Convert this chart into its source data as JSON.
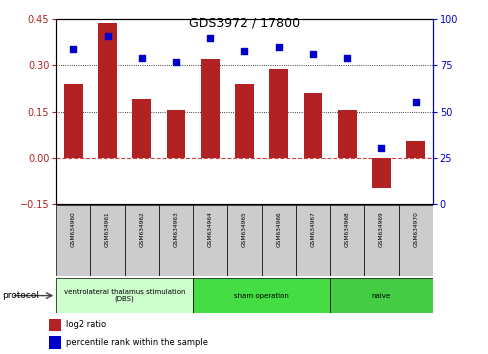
{
  "title": "GDS3972 / 17800",
  "samples": [
    "GSM634960",
    "GSM634961",
    "GSM634962",
    "GSM634963",
    "GSM634964",
    "GSM634965",
    "GSM634966",
    "GSM634967",
    "GSM634968",
    "GSM634969",
    "GSM634970"
  ],
  "log2_ratio": [
    0.24,
    0.44,
    0.19,
    0.155,
    0.32,
    0.24,
    0.29,
    0.21,
    0.155,
    -0.1,
    0.055
  ],
  "percentile_rank": [
    84,
    91,
    79,
    77,
    90,
    83,
    85,
    81,
    79,
    30,
    55
  ],
  "ylim_left": [
    -0.15,
    0.45
  ],
  "ylim_right": [
    0,
    100
  ],
  "yticks_left": [
    -0.15,
    0.0,
    0.15,
    0.3,
    0.45
  ],
  "yticks_right": [
    0,
    25,
    50,
    75,
    100
  ],
  "bar_color": "#b22222",
  "dot_color": "#0000cc",
  "zero_line_color": "#cc4444",
  "dotted_line_color": "#000000",
  "bg_color": "#ffffff",
  "plot_bg": "#ffffff",
  "groups": [
    {
      "label": "ventrolateral thalamus stimulation\n(DBS)",
      "start": 0,
      "end": 3,
      "color": "#ccffcc"
    },
    {
      "label": "sham operation",
      "start": 4,
      "end": 7,
      "color": "#44dd44"
    },
    {
      "label": "naive",
      "start": 8,
      "end": 10,
      "color": "#44cc44"
    }
  ],
  "group_bg_colors": [
    "#ccffcc",
    "#44dd44",
    "#44cc44"
  ],
  "sample_bg_color": "#cccccc",
  "protocol_label": "protocol"
}
